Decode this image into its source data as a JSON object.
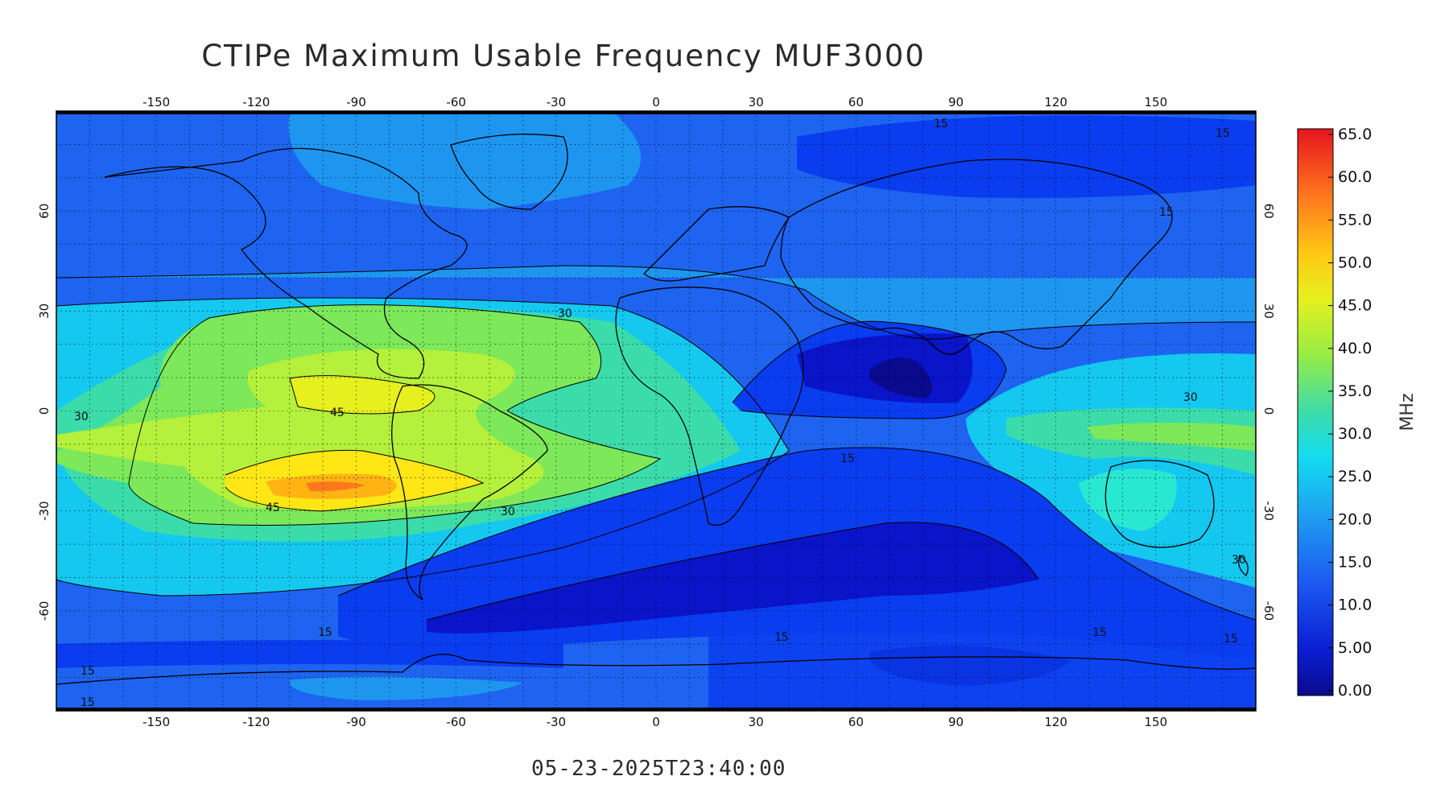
{
  "title": "CTIPe Maximum Usable Frequency MUF3000",
  "timestamp": "05-23-2025T23:40:00",
  "map": {
    "lon_ticks": [
      "-150",
      "-120",
      "-90",
      "-60",
      "-30",
      "0",
      "30",
      "60",
      "90",
      "120",
      "150"
    ],
    "lat_ticks": [
      "60",
      "30",
      "0",
      "-30",
      "-60"
    ],
    "contour_labels": {
      "c15": "15",
      "c30": "30",
      "c45": "45"
    }
  },
  "colorbar": {
    "unit": "MHz",
    "ticks": [
      "65.0",
      "60.0",
      "55.0",
      "50.0",
      "45.0",
      "40.0",
      "35.0",
      "30.0",
      "25.0",
      "20.0",
      "15.0",
      "10.0",
      "5.00",
      "0.00"
    ],
    "colors": [
      "#0a0a8c",
      "#0a14c8",
      "#0a3cf0",
      "#1e64f0",
      "#1e96f0",
      "#14c8f0",
      "#28e8d2",
      "#3cdcaa",
      "#7ce85a",
      "#b4f03c",
      "#e6f01e",
      "#ffe614",
      "#ffb414",
      "#ff781e",
      "#f03c1e",
      "#e6141e"
    ]
  }
}
